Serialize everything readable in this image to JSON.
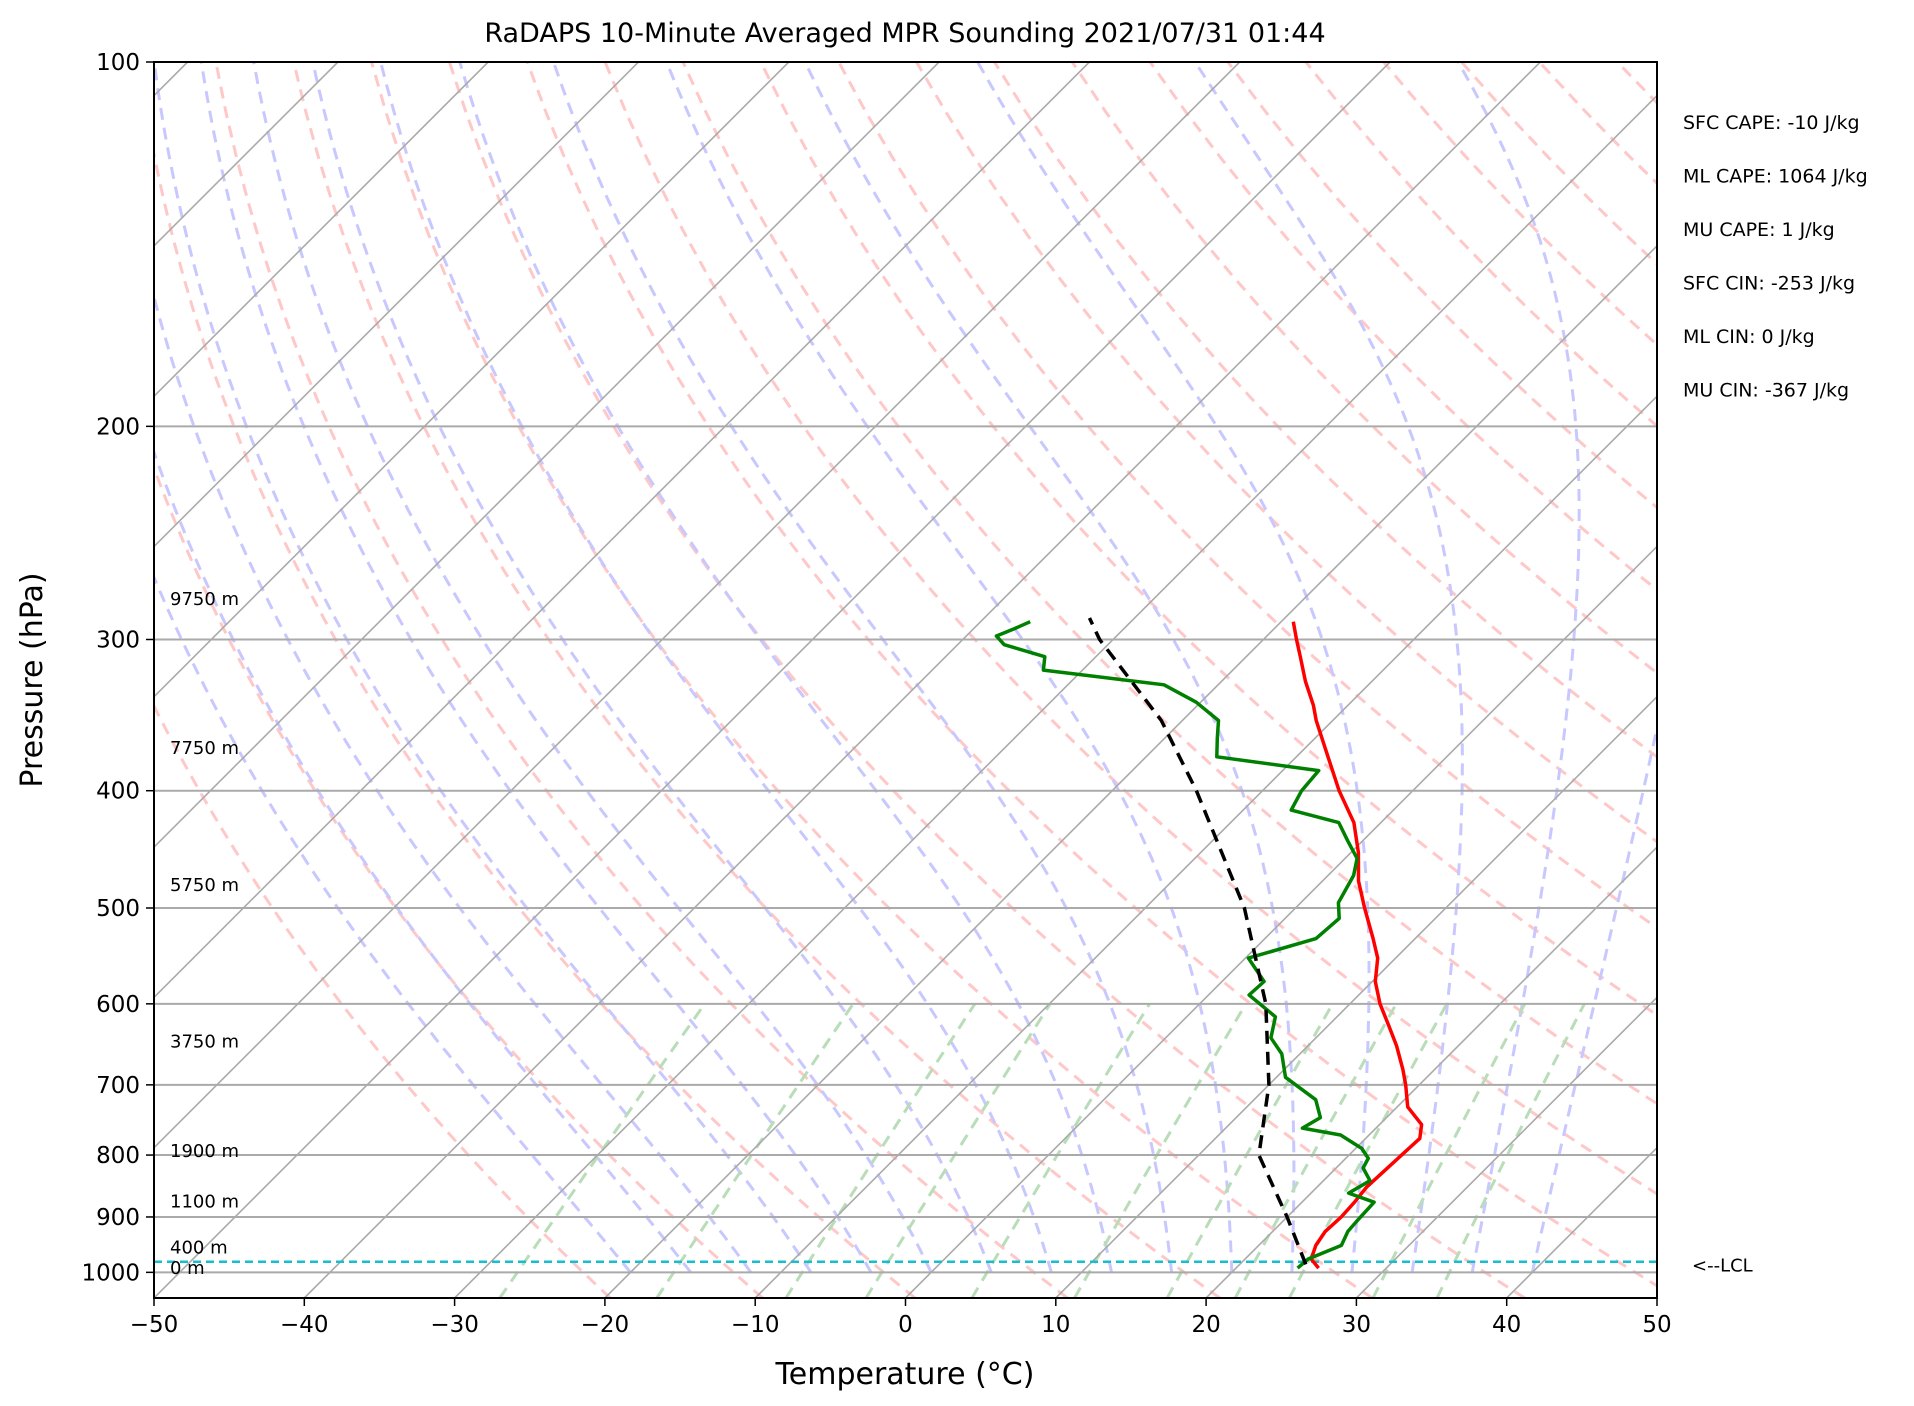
{
  "chart_data": {
    "type": "skew-t",
    "title": "RaDAPS 10-Minute Averaged MPR Sounding 2021/07/31 01:44",
    "xlabel": "Temperature (°C)",
    "ylabel": "Pressure (hPa)",
    "xlim": [
      -50,
      50
    ],
    "ylim": [
      1050,
      100
    ],
    "y_scale": "log",
    "x_ticks": [
      -50,
      -40,
      -30,
      -20,
      -10,
      0,
      10,
      20,
      30,
      40,
      50
    ],
    "x_tick_labels": [
      "−50",
      "−40",
      "−30",
      "−20",
      "−10",
      "0",
      "10",
      "20",
      "30",
      "40",
      "50"
    ],
    "y_ticks": [
      100,
      200,
      300,
      400,
      500,
      600,
      700,
      800,
      900,
      1000
    ],
    "y_tick_labels": [
      "100",
      "200",
      "300",
      "400",
      "500",
      "600",
      "700",
      "800",
      "900",
      "1000"
    ],
    "grid": true,
    "temperature": {
      "color": "#ff0000",
      "points": [
        {
          "p": 992,
          "t": 25.5
        },
        {
          "p": 975,
          "t": 24.4
        },
        {
          "p": 950,
          "t": 23.8
        },
        {
          "p": 925,
          "t": 23.5
        },
        {
          "p": 900,
          "t": 23.6
        },
        {
          "p": 875,
          "t": 23.5
        },
        {
          "p": 850,
          "t": 23.3
        },
        {
          "p": 825,
          "t": 23.4
        },
        {
          "p": 800,
          "t": 23.5
        },
        {
          "p": 775,
          "t": 23.6
        },
        {
          "p": 755,
          "t": 22.8
        },
        {
          "p": 730,
          "t": 20.7
        },
        {
          "p": 700,
          "t": 19.1
        },
        {
          "p": 680,
          "t": 17.9
        },
        {
          "p": 650,
          "t": 15.9
        },
        {
          "p": 625,
          "t": 14.0
        },
        {
          "p": 600,
          "t": 12.0
        },
        {
          "p": 575,
          "t": 10.2
        },
        {
          "p": 550,
          "t": 8.8
        },
        {
          "p": 530,
          "t": 7.2
        },
        {
          "p": 500,
          "t": 4.6
        },
        {
          "p": 475,
          "t": 2.4
        },
        {
          "p": 450,
          "t": 0.5
        },
        {
          "p": 425,
          "t": -1.8
        },
        {
          "p": 400,
          "t": -4.9
        },
        {
          "p": 375,
          "t": -7.9
        },
        {
          "p": 350,
          "t": -11.1
        },
        {
          "p": 340,
          "t": -12.3
        },
        {
          "p": 325,
          "t": -14.4
        },
        {
          "p": 310,
          "t": -16.4
        },
        {
          "p": 300,
          "t": -17.8
        },
        {
          "p": 290,
          "t": -19.2
        }
      ]
    },
    "dewpoint": {
      "color": "#008000",
      "points": [
        {
          "p": 992,
          "t": 24.1
        },
        {
          "p": 975,
          "t": 24.2
        },
        {
          "p": 950,
          "t": 25.5
        },
        {
          "p": 925,
          "t": 25.0
        },
        {
          "p": 905,
          "t": 24.9
        },
        {
          "p": 875,
          "t": 24.8
        },
        {
          "p": 860,
          "t": 22.5
        },
        {
          "p": 840,
          "t": 23.1
        },
        {
          "p": 820,
          "t": 21.8
        },
        {
          "p": 805,
          "t": 21.5
        },
        {
          "p": 790,
          "t": 20.4
        },
        {
          "p": 770,
          "t": 18.1
        },
        {
          "p": 760,
          "t": 15.1
        },
        {
          "p": 745,
          "t": 15.6
        },
        {
          "p": 720,
          "t": 14.1
        },
        {
          "p": 690,
          "t": 10.6
        },
        {
          "p": 660,
          "t": 8.8
        },
        {
          "p": 640,
          "t": 7.0
        },
        {
          "p": 615,
          "t": 5.9
        },
        {
          "p": 590,
          "t": 2.7
        },
        {
          "p": 575,
          "t": 2.8
        },
        {
          "p": 550,
          "t": 0.2
        },
        {
          "p": 530,
          "t": 3.4
        },
        {
          "p": 510,
          "t": 3.6
        },
        {
          "p": 495,
          "t": 2.5
        },
        {
          "p": 470,
          "t": 1.7
        },
        {
          "p": 455,
          "t": 0.8
        },
        {
          "p": 440,
          "t": -1.0
        },
        {
          "p": 425,
          "t": -2.8
        },
        {
          "p": 415,
          "t": -6.8
        },
        {
          "p": 400,
          "t": -7.4
        },
        {
          "p": 385,
          "t": -7.6
        },
        {
          "p": 375,
          "t": -15.3
        },
        {
          "p": 362,
          "t": -16.5
        },
        {
          "p": 350,
          "t": -17.6
        },
        {
          "p": 338,
          "t": -20.3
        },
        {
          "p": 327,
          "t": -23.6
        },
        {
          "p": 318,
          "t": -32.6
        },
        {
          "p": 310,
          "t": -33.4
        },
        {
          "p": 303,
          "t": -36.9
        },
        {
          "p": 298,
          "t": -38.0
        },
        {
          "p": 294,
          "t": -37.3
        },
        {
          "p": 290,
          "t": -36.7
        }
      ]
    },
    "parcel_profile": {
      "color": "#000000",
      "style": "dashed",
      "points": [
        {
          "p": 985,
          "t": 24.4
        },
        {
          "p": 900,
          "t": 20.0
        },
        {
          "p": 800,
          "t": 14.0
        },
        {
          "p": 700,
          "t": 10.0
        },
        {
          "p": 600,
          "t": 4.4
        },
        {
          "p": 500,
          "t": -3.4
        },
        {
          "p": 400,
          "t": -14.4
        },
        {
          "p": 350,
          "t": -21.4
        },
        {
          "p": 300,
          "t": -30.9
        },
        {
          "p": 288,
          "t": -33.0
        }
      ]
    },
    "lcl": {
      "pressure": 980,
      "label": "<--LCL",
      "color": "#17becf"
    },
    "height_labels": [
      {
        "text": "9750 m",
        "pressure": 281
      },
      {
        "text": "7750 m",
        "pressure": 373
      },
      {
        "text": "5750 m",
        "pressure": 484
      },
      {
        "text": "3750 m",
        "pressure": 652
      },
      {
        "text": "1900 m",
        "pressure": 803
      },
      {
        "text": "1100 m",
        "pressure": 884
      },
      {
        "text": "400 m",
        "pressure": 965
      },
      {
        "text": "0 m",
        "pressure": 1003
      }
    ],
    "stats": [
      "SFC CAPE: -10 J/kg",
      "ML CAPE: 1064 J/kg",
      "MU CAPE: 1 J/kg",
      "SFC CIN: -253 J/kg",
      "ML CIN: 0 J/kg",
      "MU CIN: -367 J/kg"
    ],
    "background_lines": {
      "isotherms_color": "#aaaaaa",
      "dry_adiabats_color": "#ffc8c8",
      "moist_adiabats_color": "#c8c8ff",
      "mixing_ratio_color": "#b8ddb8"
    }
  }
}
